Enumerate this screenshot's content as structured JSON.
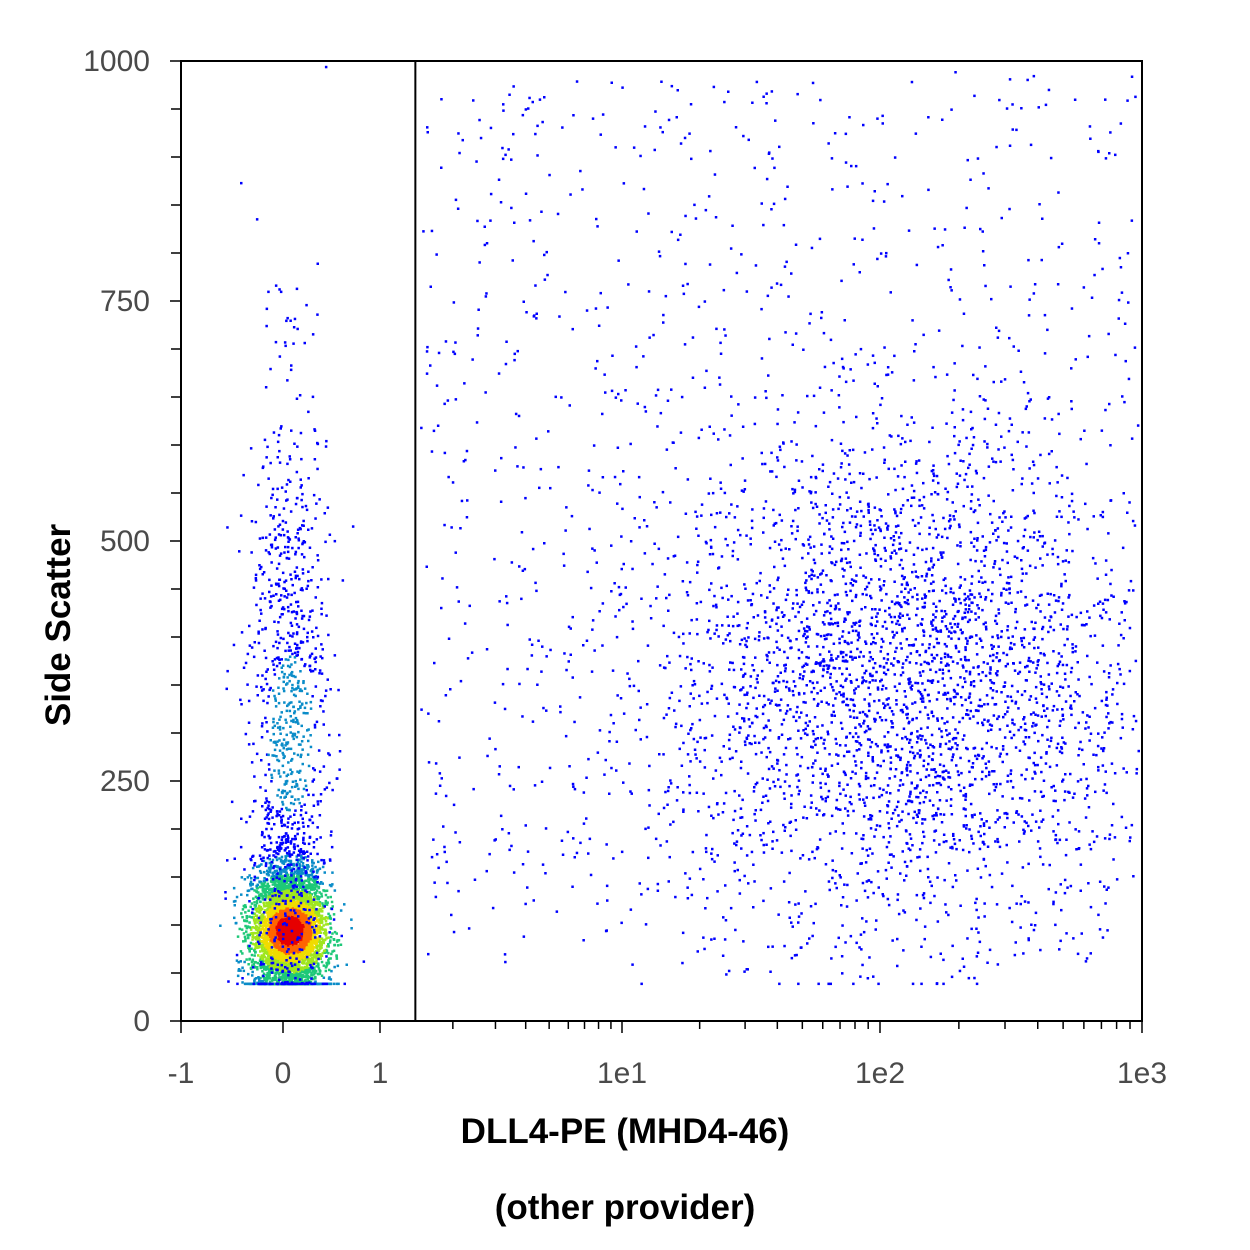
{
  "chart_data": {
    "type": "scatter",
    "title": "",
    "xlabel": "DLL4-PE (MHD4-46)",
    "xlabel_line2": "(other provider)",
    "ylabel": "Side Scatter",
    "x_scale": "biexponential",
    "xlim": [
      -1,
      1000
    ],
    "ylim": [
      0,
      1000
    ],
    "x_tick_labels": [
      "-1",
      "0",
      "1",
      "1e1",
      "1e2",
      "1e3"
    ],
    "x_tick_values": [
      -1,
      0,
      1,
      10,
      100,
      1000
    ],
    "y_tick_labels": [
      "0",
      "250",
      "500",
      "750",
      "1000"
    ],
    "y_tick_values": [
      0,
      250,
      500,
      750,
      1000
    ],
    "gate_x": 1.4,
    "density_colors": [
      "#0000ff",
      "#0a8cc8",
      "#1ec878",
      "#a0e61e",
      "#f0dc00",
      "#ff6400",
      "#e60000"
    ],
    "populations": [
      {
        "name_hidden": "negative",
        "x_center": 0.05,
        "y_center": 95,
        "x_spread": 0.18,
        "y_spread": 35,
        "weight": 0.55
      },
      {
        "name_hidden": "negative-tail",
        "x_center": 0.05,
        "y_center": 300,
        "x_spread": 0.2,
        "y_spread": 180,
        "weight": 0.12
      },
      {
        "name_hidden": "positive",
        "x_center": 120,
        "y_center": 360,
        "x_spread": 0.45,
        "y_spread": 130,
        "weight": 0.33
      }
    ],
    "grid": false,
    "legend": "none"
  }
}
